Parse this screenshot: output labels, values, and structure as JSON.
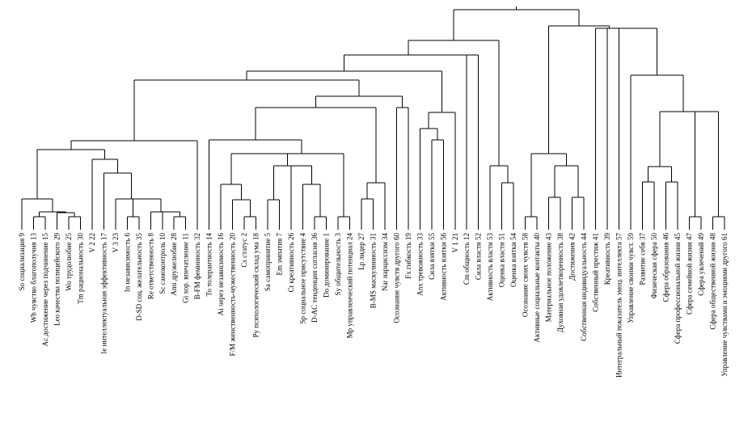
{
  "leaves": [
    "So социализация 9",
    "Wb чувство благополучия 13",
    "Ac достижение через подчинение 15",
    "Leo качества полицейского 29",
    "Wo трудолюбие 25",
    "Tm рациональность 30",
    "V 2 22",
    "Ie интеллектуальная эффективность 17",
    "V 3 23",
    "In независимость 6",
    "D-SD соц. желательность 35",
    "Re ответственность 8",
    "Sc самоконтроль 10",
    "Ami дружелюбие 28",
    "Gi хор. впечатление 11",
    "B-FM феминность 32",
    "To толерантность 14",
    "Ai через независимость 16",
    "F/M женственность-мужественность 20",
    "Cs статус 2",
    "Py психологический склад ума 18",
    "Sa самопринятие 5",
    "Em эмпатия 7",
    "Ct креативность 26",
    "Sp социальное присутствие 4",
    "D-AC тенденция согласия 36",
    "Do доминирование 1",
    "Sy общительность 3",
    "Mp управленческий потенциал 24",
    "Lp лидер 27",
    "B-MS маскулинность 31",
    "Nar нарциссизм 34",
    "Осознание чувств другого 60",
    "Fx гибкость 19",
    "Anx тревожность 33",
    "Сила взятки 55",
    "Активность взятки 56",
    "V 1 21",
    "Cm общность 12",
    "Сила власти 52",
    "Активность власти 53",
    "Оценка власти 51",
    "Оценка взятки 54",
    "Осознание своих чувств 58",
    "Активные социальные контакты 40",
    "Материальное положение 43",
    "Духовная удовлетворенность 38",
    "Достижения 42",
    "Собственная индивидуальность 44",
    "Собственный престиж 41",
    "Креативность 39",
    "Интегральный показатель эмоц. интеллекта 57",
    "Управление своими чувст. 59",
    "Развитие себя 37",
    "Физическая сфера 50",
    "Сфера образования 46",
    "Сфера профессиональной жизни 45",
    "Сфера семейной жизни 47",
    "Сфера увлечений 49",
    "Сфера общественной жизни 48",
    "Управление чувствами и эмоциями другого 61"
  ]
}
